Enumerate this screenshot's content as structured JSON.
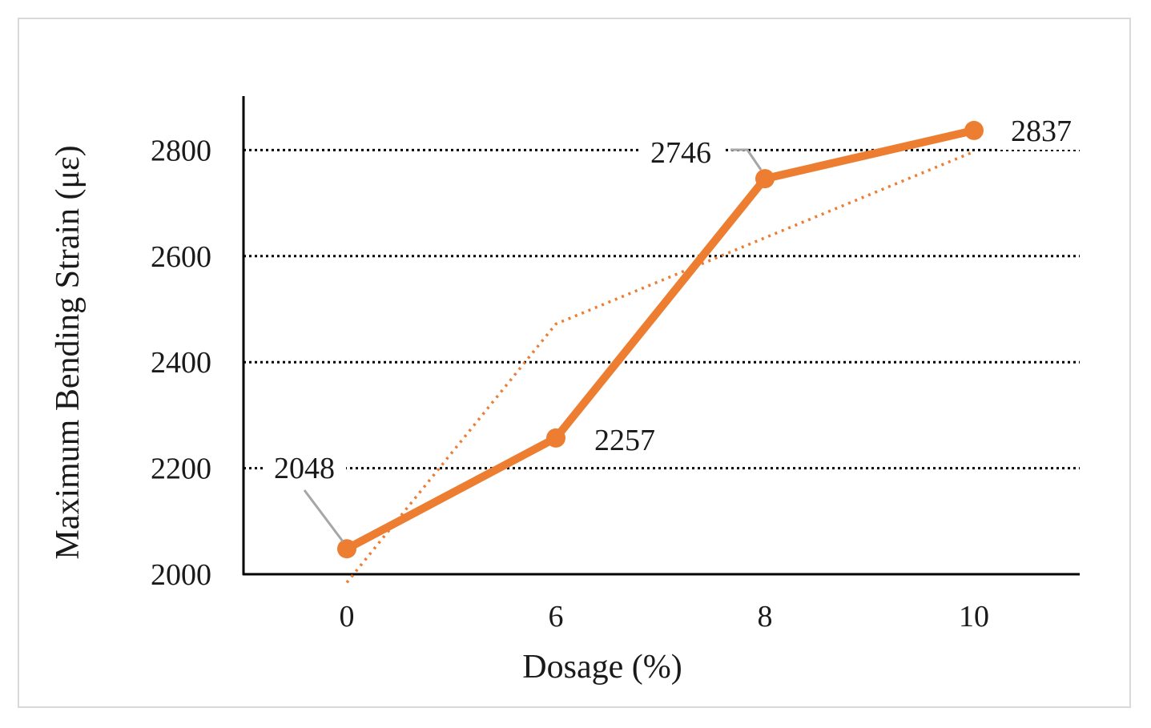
{
  "chart_data": {
    "type": "line",
    "categories": [
      "0",
      "6",
      "8",
      "10"
    ],
    "series": [
      {
        "values": [
          2048,
          2257,
          2746,
          2837
        ],
        "color": "#ed7d31"
      }
    ],
    "data_labels": [
      "2048",
      "2257",
      "2746",
      "2837"
    ],
    "trendline": {
      "type": "linear",
      "style": "dotted",
      "color": "#ed7d31"
    },
    "xlabel": "Dosage (%)",
    "ylabel": "Maximum Bending Strain (με)",
    "ylim": [
      2000,
      2900
    ],
    "yticks": [
      2000,
      2200,
      2400,
      2600,
      2800
    ],
    "gridlines": "horizontal-dotted"
  }
}
